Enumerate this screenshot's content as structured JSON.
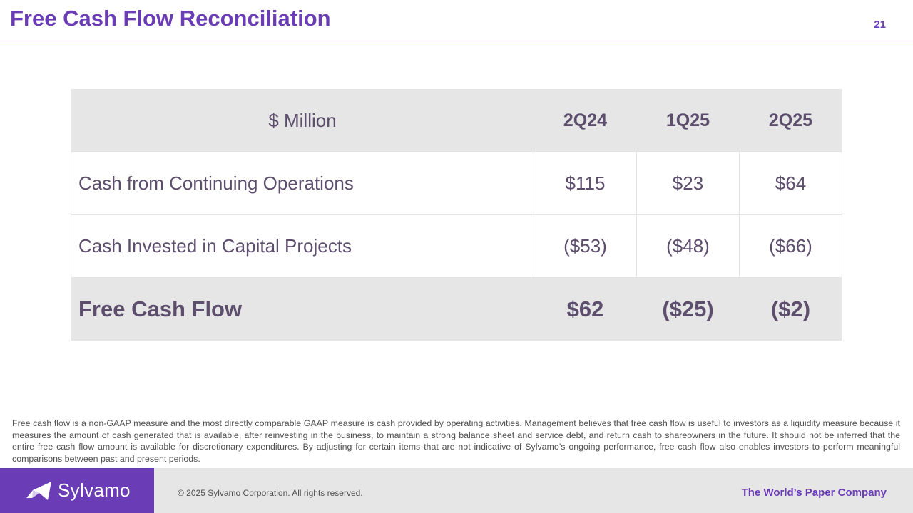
{
  "slide": {
    "title": "Free Cash Flow Reconciliation",
    "page_number": "21"
  },
  "table": {
    "header": {
      "label": "$ Million",
      "periods": [
        "2Q24",
        "1Q25",
        "2Q25"
      ]
    },
    "rows": [
      {
        "label": "Cash from Continuing Operations",
        "values": [
          "$115",
          "$23",
          "$64"
        ]
      },
      {
        "label": "Cash Invested in Capital Projects",
        "values": [
          "($53)",
          "($48)",
          "($66)"
        ]
      }
    ],
    "total": {
      "label": "Free Cash Flow",
      "values": [
        "$62",
        "($25)",
        "($2)"
      ]
    }
  },
  "footnote": "Free cash flow is a non-GAAP measure and the most directly comparable GAAP measure is cash provided by operating activities. Management believes that free cash flow is useful to investors as a liquidity measure because it measures the amount of cash generated that is available, after reinvesting in the business, to maintain a strong balance sheet and service debt, and return cash to shareowners in the future. It should not be inferred that the entire free cash flow amount is available for discretionary expenditures. By adjusting for certain items that are not indicative of Sylvamo’s ongoing performance, free cash flow also enables investors to perform meaningful comparisons between past and present periods.",
  "footer": {
    "logo_text": "Sylvamo",
    "logo_icon": "sylvamo-leaf-icon",
    "copyright": "© 2025 Sylvamo Corporation. All rights reserved.",
    "tagline": "The World’s Paper Company"
  },
  "colors": {
    "brand_purple": "#6a3cb5",
    "table_text": "#5d4e6d",
    "band_gray": "#e6e6e6"
  }
}
